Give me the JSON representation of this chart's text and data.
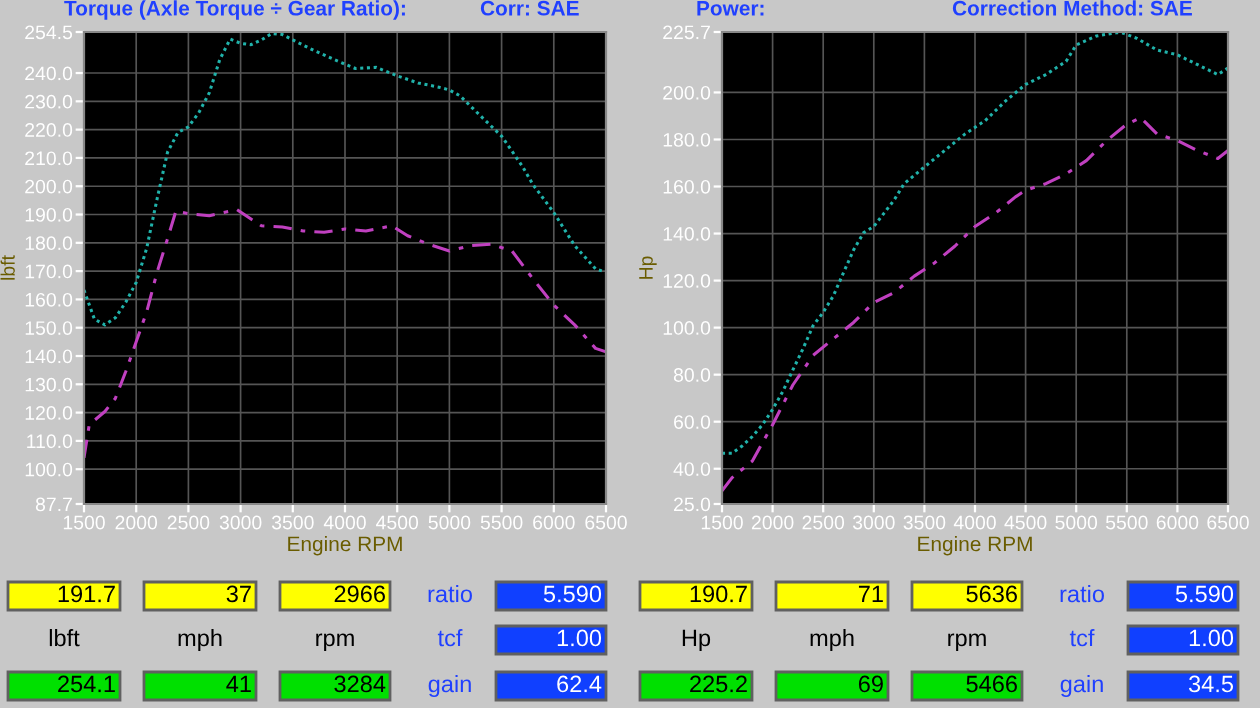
{
  "chart_data": [
    {
      "type": "line",
      "title": "Torque (Axle Torque ÷ Gear Ratio):",
      "subtitle": "Corr: SAE",
      "xlabel": "Engine RPM",
      "ylabel": "lbft",
      "xlim": [
        1500,
        6500
      ],
      "xticks": [
        1500,
        2000,
        2500,
        3000,
        3500,
        4000,
        4500,
        5000,
        5500,
        6000,
        6500
      ],
      "ylim": [
        87.7,
        254.5
      ],
      "yticks": [
        87.7,
        {
          "value": 100,
          "label": "100.0"
        },
        {
          "value": 110,
          "label": "110.0"
        },
        {
          "value": 120,
          "label": "120.0"
        },
        {
          "value": 130,
          "label": "130.0"
        },
        {
          "value": 140,
          "label": "140.0"
        },
        {
          "value": 150,
          "label": "150.0"
        },
        {
          "value": 160,
          "label": "160.0"
        },
        {
          "value": 170,
          "label": "170.0"
        },
        {
          "value": 180,
          "label": "180.0"
        },
        {
          "value": 190,
          "label": "190.0"
        },
        {
          "value": 200,
          "label": "200.0"
        },
        {
          "value": 210,
          "label": "210.0"
        },
        {
          "value": 220,
          "label": "220.0"
        },
        {
          "value": 230,
          "label": "230.0"
        },
        {
          "value": 240,
          "label": "240.0"
        },
        254.5
      ],
      "grid": true,
      "legend": false,
      "series": [
        {
          "color": "#20b2aa",
          "line_style": "dotted",
          "x": [
            1500,
            1600,
            1700,
            1800,
            1900,
            2000,
            2100,
            2200,
            2300,
            2400,
            2500,
            2600,
            2700,
            2800,
            2900,
            3000,
            3100,
            3200,
            3300,
            3400,
            3500,
            3700,
            3900,
            4100,
            4300,
            4500,
            4700,
            4900,
            5000,
            5100,
            5300,
            5500,
            5700,
            5800,
            6000,
            6200,
            6400,
            6500
          ],
          "values": [
            163.3,
            153,
            151,
            153.5,
            159,
            166,
            178,
            195.5,
            212,
            219,
            221,
            226,
            233,
            244.7,
            252,
            250.5,
            250,
            251.7,
            254,
            253.6,
            251.7,
            248,
            244.7,
            241.6,
            242,
            239,
            236.5,
            235,
            234,
            232,
            224.8,
            217.7,
            207,
            200.6,
            190.7,
            179,
            170.8,
            169.6
          ]
        },
        {
          "color": "#c040c0",
          "line_style": "dashed",
          "x": [
            1500,
            1550,
            1700,
            1800,
            1900,
            2000,
            2100,
            2200,
            2300,
            2380,
            2500,
            2700,
            2850,
            2966,
            3100,
            3200,
            3400,
            3600,
            3800,
            4000,
            4200,
            4450,
            4600,
            4800,
            5000,
            5200,
            5400,
            5600,
            5800,
            6000,
            6200,
            6400,
            6500
          ],
          "values": [
            104,
            115.7,
            120.4,
            125,
            134.5,
            145,
            155.6,
            169.6,
            181.4,
            191.2,
            190.3,
            189.6,
            190.8,
            191.7,
            188.4,
            186,
            185.6,
            184.2,
            183.7,
            184.9,
            184.2,
            186,
            182.5,
            179.5,
            177.1,
            179,
            179.5,
            177.1,
            167.3,
            158,
            151,
            142.7,
            141.5
          ]
        }
      ],
      "annotations": [
        "191.7",
        "37",
        "2966",
        "ratio",
        "5.590",
        "lbft",
        "mph",
        "rpm",
        "tcf",
        "1.00",
        "254.1",
        "41",
        "3284",
        "gain",
        "62.4"
      ]
    },
    {
      "type": "line",
      "title": "Power:",
      "subtitle": "Correction Method: SAE",
      "xlabel": "Engine RPM",
      "ylabel": "Hp",
      "xlim": [
        1500,
        6500
      ],
      "xticks": [
        1500,
        2000,
        2500,
        3000,
        3500,
        4000,
        4500,
        5000,
        5500,
        6000,
        6500
      ],
      "ylim": [
        25,
        225.7
      ],
      "yticks": [
        {
          "value": 25,
          "label": "25.0"
        },
        {
          "value": 40,
          "label": "40.0"
        },
        {
          "value": 60,
          "label": "60.0"
        },
        {
          "value": 80,
          "label": "80.0"
        },
        {
          "value": 100,
          "label": "100.0"
        },
        {
          "value": 120,
          "label": "120.0"
        },
        {
          "value": 140,
          "label": "140.0"
        },
        {
          "value": 160,
          "label": "160.0"
        },
        {
          "value": 180,
          "label": "180.0"
        },
        {
          "value": 200,
          "label": "200.0"
        },
        225.7
      ],
      "grid": true,
      "legend": false,
      "series": [
        {
          "color": "#20b2aa",
          "line_style": "dotted",
          "x": [
            1500,
            1600,
            1700,
            1800,
            1900,
            2000,
            2100,
            2200,
            2300,
            2400,
            2500,
            2600,
            2700,
            2800,
            2900,
            3000,
            3100,
            3200,
            3300,
            3500,
            3700,
            3900,
            4100,
            4300,
            4500,
            4700,
            4900,
            5000,
            5200,
            5400,
            5466,
            5600,
            5800,
            6000,
            6200,
            6400,
            6500
          ],
          "values": [
            46.6,
            46.6,
            49.7,
            53.7,
            58.7,
            65.2,
            72.8,
            82,
            91,
            100.8,
            106.5,
            113.5,
            123.3,
            133,
            140.4,
            143,
            148.6,
            154.2,
            161.2,
            168.3,
            175.3,
            182.3,
            188,
            196.3,
            203.4,
            207.6,
            213.2,
            220.2,
            224,
            225.4,
            225.2,
            223,
            218,
            216,
            211.8,
            207.6,
            210.4
          ]
        },
        {
          "color": "#c040c0",
          "line_style": "dashed",
          "x": [
            1500,
            1600,
            1800,
            2000,
            2200,
            2400,
            2600,
            2800,
            3000,
            3200,
            3400,
            3600,
            3800,
            4000,
            4200,
            4400,
            4500,
            4700,
            4900,
            5100,
            5300,
            5500,
            5636,
            5800,
            6000,
            6200,
            6400,
            6500
          ],
          "values": [
            30.6,
            36.2,
            43.3,
            58.7,
            75.6,
            88.2,
            95.2,
            102.2,
            110.7,
            114.9,
            121.9,
            127.5,
            134.6,
            143,
            148.6,
            155.6,
            158.4,
            161.2,
            165.4,
            171,
            179.5,
            186.5,
            189.3,
            182.3,
            179.5,
            175.3,
            171.9,
            175.3
          ]
        }
      ],
      "annotations": [
        "190.7",
        "71",
        "5636",
        "ratio",
        "5.590",
        "Hp",
        "mph",
        "rpm",
        "tcf",
        "1.00",
        "225.2",
        "69",
        "5466",
        "gain",
        "34.5"
      ]
    }
  ]
}
